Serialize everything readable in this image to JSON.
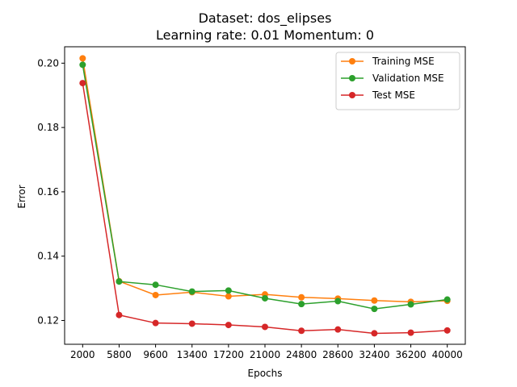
{
  "chart_data": {
    "type": "line",
    "title_line1": "Dataset: dos_elipses",
    "title_line2": "Learning rate: 0.01  Momentum: 0",
    "xlabel": "Epochs",
    "ylabel": "Error",
    "x": [
      2000,
      5800,
      9600,
      13400,
      17200,
      21000,
      24800,
      28600,
      32400,
      36200,
      40000
    ],
    "x_ticks": [
      "2000",
      "5800",
      "9600",
      "13400",
      "17200",
      "21000",
      "24800",
      "28600",
      "32400",
      "36200",
      "40000"
    ],
    "y_ticks": [
      0.12,
      0.14,
      0.16,
      0.18,
      0.2
    ],
    "y_tick_labels": [
      "0.12",
      "0.14",
      "0.16",
      "0.18",
      "0.20"
    ],
    "ylim": [
      0.1126,
      0.2051
    ],
    "grid": false,
    "legend_position": "top-right",
    "series": [
      {
        "name": "Training MSE",
        "color": "#ff7f0e",
        "values": [
          0.2015,
          0.1322,
          0.1279,
          0.1288,
          0.1275,
          0.1281,
          0.1272,
          0.1268,
          0.1262,
          0.1258,
          0.1261
        ]
      },
      {
        "name": "Validation MSE",
        "color": "#2ca02c",
        "values": [
          0.1995,
          0.1321,
          0.1311,
          0.129,
          0.1293,
          0.1269,
          0.1251,
          0.126,
          0.1236,
          0.125,
          0.1265
        ]
      },
      {
        "name": "Test MSE",
        "color": "#d62728",
        "values": [
          0.1938,
          0.1217,
          0.1192,
          0.119,
          0.1186,
          0.118,
          0.1168,
          0.1172,
          0.116,
          0.1162,
          0.1169
        ]
      }
    ]
  }
}
